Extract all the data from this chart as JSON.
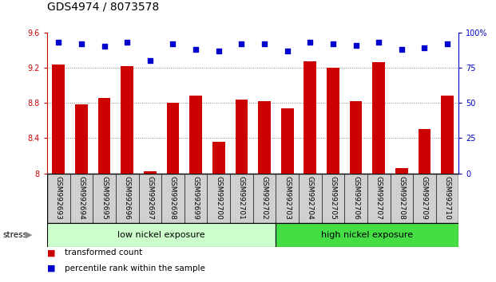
{
  "title": "GDS4974 / 8073578",
  "samples": [
    "GSM992693",
    "GSM992694",
    "GSM992695",
    "GSM992696",
    "GSM992697",
    "GSM992698",
    "GSM992699",
    "GSM992700",
    "GSM992701",
    "GSM992702",
    "GSM992703",
    "GSM992704",
    "GSM992705",
    "GSM992706",
    "GSM992707",
    "GSM992708",
    "GSM992709",
    "GSM992710"
  ],
  "transformed_count": [
    9.24,
    8.78,
    8.86,
    9.22,
    8.02,
    8.8,
    8.88,
    8.36,
    8.84,
    8.82,
    8.74,
    9.27,
    9.2,
    8.82,
    9.26,
    8.06,
    8.5,
    8.88
  ],
  "percentile_rank": [
    93,
    92,
    90,
    93,
    80,
    92,
    88,
    87,
    92,
    92,
    87,
    93,
    92,
    91,
    93,
    88,
    89,
    92
  ],
  "bar_color": "#cc0000",
  "dot_color": "#0000cc",
  "ylim_left": [
    8.0,
    9.6
  ],
  "ylim_right": [
    0,
    100
  ],
  "yticks_left": [
    8.0,
    8.4,
    8.8,
    9.2,
    9.6
  ],
  "yticks_right": [
    0,
    25,
    50,
    75,
    100
  ],
  "ytick_labels_left": [
    "8",
    "8.4",
    "8.8",
    "9.2",
    "9.6"
  ],
  "ytick_labels_right": [
    "0",
    "25",
    "50",
    "75",
    "100%"
  ],
  "grid_values": [
    8.4,
    8.8,
    9.2
  ],
  "low_nickel_count": 10,
  "group_low_label": "low nickel exposure",
  "group_high_label": "high nickel exposure",
  "stress_label": "stress",
  "legend_bar_label": "transformed count",
  "legend_dot_label": "percentile rank within the sample",
  "bar_width": 0.55,
  "bg_plot": "#ffffff",
  "bg_label": "#d0d0d0",
  "bg_low": "#ccffcc",
  "bg_high": "#44dd44",
  "title_fontsize": 10,
  "tick_fontsize": 7,
  "label_fontsize": 6.5,
  "legend_fontsize": 7.5,
  "group_fontsize": 8
}
